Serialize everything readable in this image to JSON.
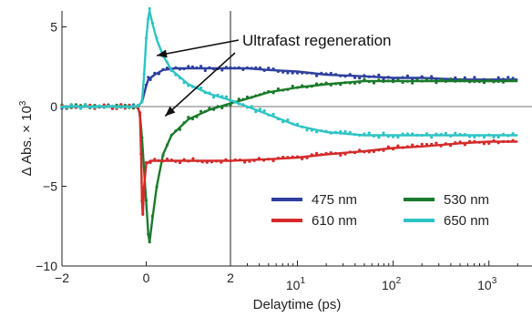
{
  "chart_data": {
    "type": "line",
    "title": "",
    "xlabel": "Delaytime (ps)",
    "ylabel": "Δ Abs. × 10",
    "ylabel_exponent": "3",
    "xscale": "linear from -2 to 2 ps, then logarithmic from 2 to 2000 ps",
    "xlim": [
      -2,
      2000
    ],
    "ylim": [
      -10,
      6
    ],
    "x_tick_labels_linear": [
      {
        "value": -2,
        "label": "−2"
      },
      {
        "value": 0,
        "label": "0"
      },
      {
        "value": 2,
        "label": "2"
      }
    ],
    "x_tick_labels_log": [
      {
        "value": 10,
        "base": "10",
        "exp": "1"
      },
      {
        "value": 100,
        "base": "10",
        "exp": "2"
      },
      {
        "value": 1000,
        "base": "10",
        "exp": "3"
      }
    ],
    "y_ticks": [
      {
        "value": 5,
        "label": "5"
      },
      {
        "value": 0,
        "label": "0"
      },
      {
        "value": -5,
        "label": "−5"
      },
      {
        "value": -10,
        "label": "−10"
      }
    ],
    "zero_line": true,
    "legend_position": "bottom-right",
    "annotation": {
      "text": "Ultrafast regeneration",
      "arrow_targets": [
        {
          "x": 0.25,
          "y": 3.2
        },
        {
          "x": 0.45,
          "y": -0.6
        }
      ]
    },
    "series": [
      {
        "name": "475 nm",
        "color": "#2e3f9e",
        "x": [
          -2,
          -1,
          -0.5,
          -0.2,
          -0.1,
          0.0,
          0.05,
          0.1,
          0.2,
          0.4,
          0.7,
          1.0,
          1.5,
          2.0,
          3,
          5,
          10,
          20,
          50,
          100,
          200,
          500,
          1000,
          2000
        ],
        "y": [
          0,
          0,
          0,
          0,
          0.3,
          1.3,
          1.7,
          1.8,
          2.0,
          2.3,
          2.4,
          2.4,
          2.4,
          2.4,
          2.4,
          2.3,
          2.2,
          2.0,
          1.9,
          1.8,
          1.8,
          1.7,
          1.7,
          1.7
        ]
      },
      {
        "name": "530 nm",
        "color": "#1a7a2b",
        "x": [
          -2,
          -1,
          -0.5,
          -0.2,
          -0.15,
          -0.1,
          0.0,
          0.05,
          0.08,
          0.15,
          0.25,
          0.4,
          0.6,
          1.0,
          1.5,
          2.0,
          3,
          5,
          10,
          20,
          50,
          100,
          200,
          500,
          1000,
          2000
        ],
        "y": [
          0,
          0,
          0,
          0,
          -0.5,
          -2.0,
          -6.0,
          -8.0,
          -8.5,
          -7.0,
          -5.0,
          -3.0,
          -1.8,
          -0.8,
          -0.2,
          0.2,
          0.5,
          0.9,
          1.2,
          1.4,
          1.6,
          1.6,
          1.6,
          1.6,
          1.6,
          1.6
        ]
      },
      {
        "name": "610 nm",
        "color": "#d42a2a",
        "x": [
          -2,
          -1,
          -0.5,
          -0.2,
          -0.15,
          -0.12,
          -0.1,
          -0.08,
          -0.05,
          0.0,
          0.1,
          0.5,
          1.0,
          2.0,
          5,
          10,
          20,
          50,
          100,
          200,
          500,
          1000,
          2000
        ],
        "y": [
          0,
          0,
          0,
          0,
          -0.5,
          -3.0,
          -6.0,
          -6.8,
          -5.0,
          -3.6,
          -3.4,
          -3.4,
          -3.4,
          -3.4,
          -3.3,
          -3.2,
          -3.0,
          -2.8,
          -2.6,
          -2.5,
          -2.3,
          -2.2,
          -2.2
        ]
      },
      {
        "name": "650 nm",
        "color": "#2ec4c4",
        "x": [
          -2,
          -1,
          -0.5,
          -0.2,
          -0.1,
          -0.05,
          0.0,
          0.05,
          0.08,
          0.15,
          0.25,
          0.4,
          0.6,
          1.0,
          1.5,
          2.0,
          3,
          5,
          10,
          20,
          50,
          100,
          200,
          500,
          1000,
          2000
        ],
        "y": [
          0,
          0,
          0,
          0,
          0.3,
          2.0,
          4.2,
          5.6,
          6.0,
          5.2,
          4.2,
          3.2,
          2.3,
          1.4,
          0.8,
          0.4,
          0.0,
          -0.5,
          -1.2,
          -1.6,
          -1.8,
          -1.8,
          -1.8,
          -1.8,
          -1.8,
          -1.8
        ]
      }
    ]
  }
}
